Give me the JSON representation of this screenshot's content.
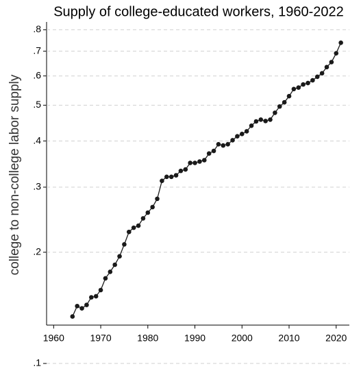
{
  "chart_data": {
    "type": "line",
    "title": "Supply of college-educated workers, 1960-2022",
    "y_label": "college to non-college labor supply",
    "x": [
      1964,
      1965,
      1966,
      1967,
      1968,
      1969,
      1970,
      1971,
      1972,
      1973,
      1974,
      1975,
      1976,
      1977,
      1978,
      1979,
      1980,
      1981,
      1982,
      1983,
      1984,
      1985,
      1986,
      1987,
      1988,
      1989,
      1990,
      1991,
      1992,
      1993,
      1994,
      1995,
      1996,
      1997,
      1998,
      1999,
      2000,
      2001,
      2002,
      2003,
      2004,
      2005,
      2006,
      2007,
      2008,
      2009,
      2010,
      2011,
      2012,
      2013,
      2014,
      2015,
      2016,
      2017,
      2018,
      2019,
      2020,
      2021
    ],
    "values": [
      0.134,
      0.143,
      0.141,
      0.144,
      0.151,
      0.152,
      0.158,
      0.17,
      0.177,
      0.185,
      0.195,
      0.21,
      0.227,
      0.233,
      0.236,
      0.247,
      0.256,
      0.265,
      0.279,
      0.312,
      0.32,
      0.32,
      0.323,
      0.332,
      0.335,
      0.349,
      0.349,
      0.352,
      0.355,
      0.37,
      0.376,
      0.392,
      0.389,
      0.392,
      0.402,
      0.412,
      0.418,
      0.425,
      0.44,
      0.452,
      0.457,
      0.453,
      0.457,
      0.477,
      0.496,
      0.509,
      0.529,
      0.553,
      0.558,
      0.569,
      0.574,
      0.584,
      0.597,
      0.61,
      0.634,
      0.654,
      0.691,
      0.738
    ],
    "color": "#1a1a1a",
    "xlim": [
      1958.5,
      2022.8
    ],
    "xticks": [
      1960,
      1970,
      1980,
      1990,
      2000,
      2010,
      2020
    ],
    "ylim": [
      0.127,
      0.84
    ],
    "yticks": [
      {
        "value": 0.1,
        "label": ".1"
      },
      {
        "value": 0.2,
        "label": ".2"
      },
      {
        "value": 0.3,
        "label": ".3"
      },
      {
        "value": 0.4,
        "label": ".4"
      },
      {
        "value": 0.5,
        "label": ".5"
      },
      {
        "value": 0.6,
        "label": ".6"
      },
      {
        "value": 0.7,
        "label": ".7"
      },
      {
        "value": 0.8,
        "label": ".8"
      }
    ],
    "ylog": true,
    "grid": true
  }
}
